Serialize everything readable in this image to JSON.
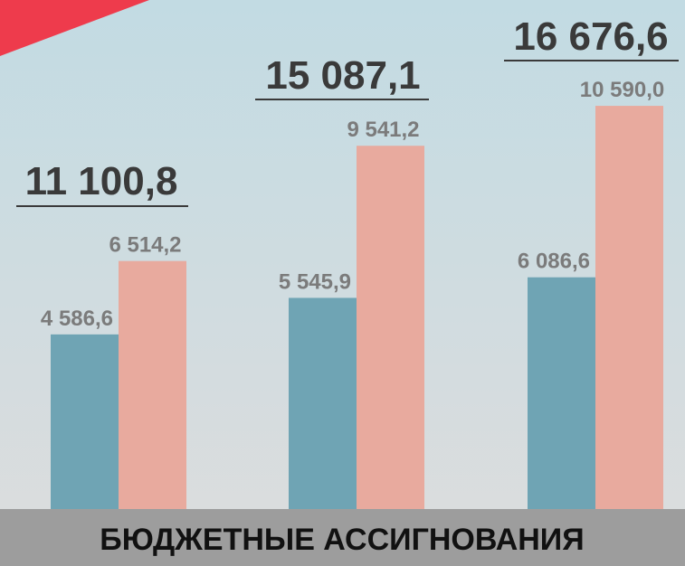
{
  "chart_data": {
    "type": "bar",
    "title": "БЮДЖЕТНЫЕ АССИГНОВАНИЯ",
    "ylim": [
      0,
      13370
    ],
    "series": [
      {
        "color": "#6fa4b4",
        "values": [
          4586.6,
          5545.9,
          6086.6
        ],
        "value_labels": [
          "4 586,6",
          "5 545,9",
          "6 086,6"
        ]
      },
      {
        "color": "#e8aa9e",
        "values": [
          6514.2,
          9541.2,
          10590.0
        ],
        "value_labels": [
          "6 514,2",
          "9 541,2",
          "10 590,0"
        ]
      }
    ],
    "totals": [
      {
        "value": 11100.8,
        "label": "11 100,8"
      },
      {
        "value": 15087.1,
        "label": "15 087,1"
      },
      {
        "value": 16676.6,
        "label": "16 676,6"
      }
    ]
  }
}
